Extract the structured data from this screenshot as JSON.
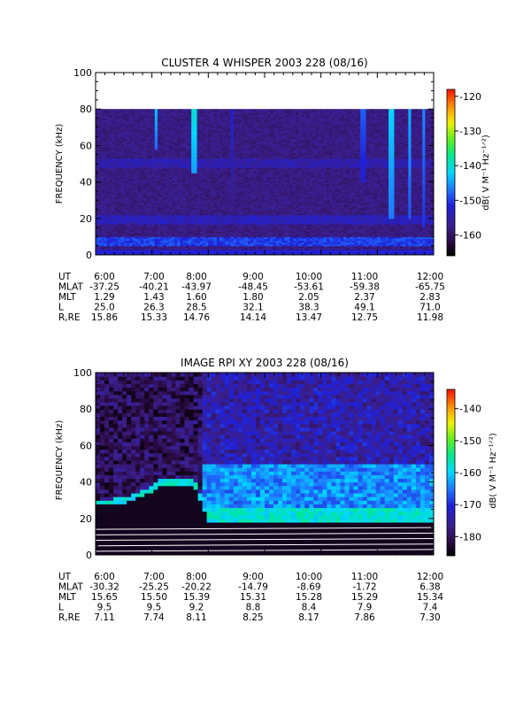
{
  "panels": [
    {
      "title": "CLUSTER 4 WHISPER 2003 228 (08/16)",
      "ylabel": "FREQUENCY (kHz)",
      "ylim": [
        0,
        100
      ],
      "y_ticks": [
        "0",
        "20",
        "40",
        "60",
        "80",
        "100"
      ],
      "x_ticks": [
        "6:00",
        "7:00",
        "8:00",
        "9:00",
        "10:00",
        "11:00",
        "12:00"
      ],
      "colorbar": {
        "label": "dB( V M⁻¹ Hz⁻¹ᐟ²)",
        "range": [
          -166,
          -118
        ],
        "ticks": [
          "-120",
          "-130",
          "-140",
          "-150",
          "-160"
        ]
      },
      "ephemeris": [
        {
          "label": "UT",
          "values": [
            "6:00",
            "7:00",
            "8:00",
            "9:00",
            "10:00",
            "11:00",
            "12:00"
          ]
        },
        {
          "label": "MLAT",
          "values": [
            "-37.25",
            "-40.21",
            "-43.97",
            "-48.45",
            "-53.61",
            "-59.38",
            "-65.75"
          ]
        },
        {
          "label": "MLT",
          "values": [
            "1.29",
            "1.43",
            "1.60",
            "1.80",
            "2.05",
            "2.37",
            "2.83"
          ]
        },
        {
          "label": "L",
          "values": [
            "25.0",
            "26.3",
            "28.5",
            "32.1",
            "38.3",
            "49.1",
            "71.0"
          ]
        },
        {
          "label": "R,RE",
          "values": [
            "15.86",
            "15.33",
            "14.76",
            "14.14",
            "13.47",
            "12.75",
            "11.98"
          ]
        }
      ]
    },
    {
      "title": "IMAGE RPI XY 2003 228 (08/16)",
      "ylabel": "FREQUENCY (kHz)",
      "ylim": [
        0,
        100
      ],
      "y_ticks": [
        "0",
        "20",
        "40",
        "60",
        "80",
        "100"
      ],
      "x_ticks": [
        "6:00",
        "7:00",
        "8:00",
        "9:00",
        "10:00",
        "11:00",
        "12:00"
      ],
      "colorbar": {
        "label": "dB( V M⁻¹ Hz⁻¹ᐟ²)",
        "range": [
          -186,
          -134
        ],
        "ticks": [
          "-140",
          "-150",
          "-160",
          "-170",
          "-180"
        ]
      },
      "ephemeris": [
        {
          "label": "UT",
          "values": [
            "6:00",
            "7:00",
            "8:00",
            "9:00",
            "10:00",
            "11:00",
            "12:00"
          ]
        },
        {
          "label": "MLAT",
          "values": [
            "-30.32",
            "-25.25",
            "-20.22",
            "-14.79",
            "-8.69",
            "-1.72",
            "6.38"
          ]
        },
        {
          "label": "MLT",
          "values": [
            "15.65",
            "15.50",
            "15.39",
            "15.31",
            "15.28",
            "15.29",
            "15.34"
          ]
        },
        {
          "label": "L",
          "values": [
            "9.5",
            "9.5",
            "9.2",
            "8.8",
            "8.4",
            "7.9",
            "7.4"
          ]
        },
        {
          "label": "R,RE",
          "values": [
            "7.11",
            "7.74",
            "8.11",
            "8.25",
            "8.17",
            "7.86",
            "7.30"
          ]
        }
      ]
    }
  ],
  "chart_data": [
    {
      "type": "heatmap",
      "title": "CLUSTER 4 WHISPER 2003 228 (08/16)",
      "xlabel": "",
      "ylabel": "FREQUENCY (kHz)",
      "x_range": [
        "6:00",
        "12:00"
      ],
      "ylim": [
        0,
        100
      ],
      "color_scale_label": "dB( V M⁻¹ Hz⁻¹ᐟ²)",
      "color_scale_range": [
        -166,
        -118
      ],
      "data_frequency_max_khz": 80,
      "background_level_db": -158,
      "bands": [
        {
          "name": "band 5-10 kHz",
          "freq_khz": [
            5,
            10
          ],
          "level_db": -150
        },
        {
          "name": "band 17-22 kHz",
          "freq_khz": [
            17,
            22
          ],
          "level_db": -154
        },
        {
          "name": "band ~50 kHz",
          "freq_khz": [
            48,
            53
          ],
          "level_db": -155
        }
      ],
      "spikes": [
        {
          "time": "7:05",
          "freq_khz": [
            58,
            80
          ],
          "level_db": -143
        },
        {
          "time": "7:45",
          "freq_khz": [
            45,
            80
          ],
          "level_db": -140
        },
        {
          "time": "8:25",
          "freq_khz": [
            30,
            80
          ],
          "level_db": -152
        },
        {
          "time": "10:45",
          "freq_khz": [
            40,
            80
          ],
          "level_db": -148
        },
        {
          "time": "11:15",
          "freq_khz": [
            20,
            80
          ],
          "level_db": -142
        },
        {
          "time": "11:35",
          "freq_khz": [
            20,
            80
          ],
          "level_db": -144
        },
        {
          "time": "11:50",
          "freq_khz": [
            15,
            80
          ],
          "level_db": -146
        }
      ]
    },
    {
      "type": "heatmap",
      "title": "IMAGE RPI XY 2003 228 (08/16)",
      "xlabel": "",
      "ylabel": "FREQUENCY (kHz)",
      "x_range": [
        "6:00",
        "12:00"
      ],
      "ylim": [
        0,
        100
      ],
      "color_scale_label": "dB( V M⁻¹ Hz⁻¹ᐟ²)",
      "color_scale_range": [
        -186,
        -134
      ],
      "background_level_db": -174,
      "bright_band": {
        "freq_khz": [
          15,
          25
        ],
        "level_db": -158
      },
      "mid_band": {
        "freq_khz": [
          25,
          50
        ],
        "level_db": -164
      },
      "lower_cutoff": [
        {
          "time": "6:00",
          "freq_khz": 26
        },
        {
          "time": "6:35",
          "freq_khz": 28
        },
        {
          "time": "7:00",
          "freq_khz": 34
        },
        {
          "time": "7:10",
          "freq_khz": 38
        },
        {
          "time": "7:45",
          "freq_khz": 37
        },
        {
          "time": "7:55",
          "freq_khz": 25
        },
        {
          "time": "8:00",
          "freq_khz": 18
        },
        {
          "time": "12:00",
          "freq_khz": 17
        }
      ],
      "low_noise_lines_khz": [
        2,
        5,
        8,
        11,
        14
      ]
    }
  ]
}
